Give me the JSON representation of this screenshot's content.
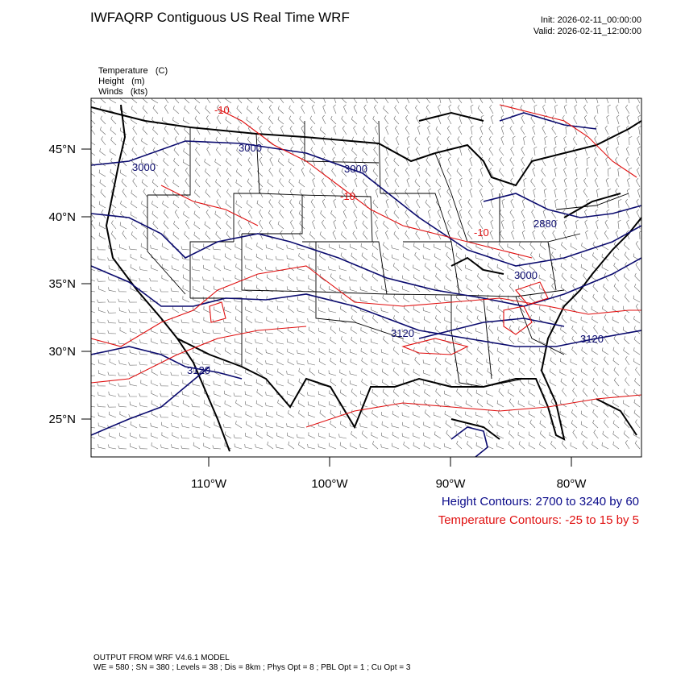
{
  "title": "IWFAQRP Contiguous US Real Time WRF",
  "init": "Init: 2026-02-11_00:00:00",
  "valid": "Valid: 2026-02-11_12:00:00",
  "fields": [
    {
      "name": "Temperature",
      "unit": "(C)"
    },
    {
      "name": "Height",
      "unit": "(m)"
    },
    {
      "name": "Winds",
      "unit": "(kts)"
    }
  ],
  "lat_labels": [
    "45°N",
    "40°N",
    "35°N",
    "30°N",
    "25°N"
  ],
  "lon_labels": [
    "110°W",
    "100°W",
    "90°W",
    "80°W"
  ],
  "height_labels": [
    "3000",
    "3000",
    "3000",
    "2880",
    "3000",
    "3120",
    "3120",
    "3120"
  ],
  "temp_labels": [
    "-10",
    "-10",
    "-10"
  ],
  "height_contours": "Height Contours: 2700 to 3240 by 60",
  "temp_contours": "Temperature Contours: -25 to 15 by 5",
  "model": "OUTPUT FROM WRF V4.6.1 MODEL",
  "options": "WE = 580 ; SN = 380 ; Levels = 38 ; Dis = 8km ; Phys Opt = 8 ; PBL Opt = 1 ; Cu Opt = 3",
  "colors": {
    "height": "#0a0a6e",
    "temperature": "#e01010"
  }
}
